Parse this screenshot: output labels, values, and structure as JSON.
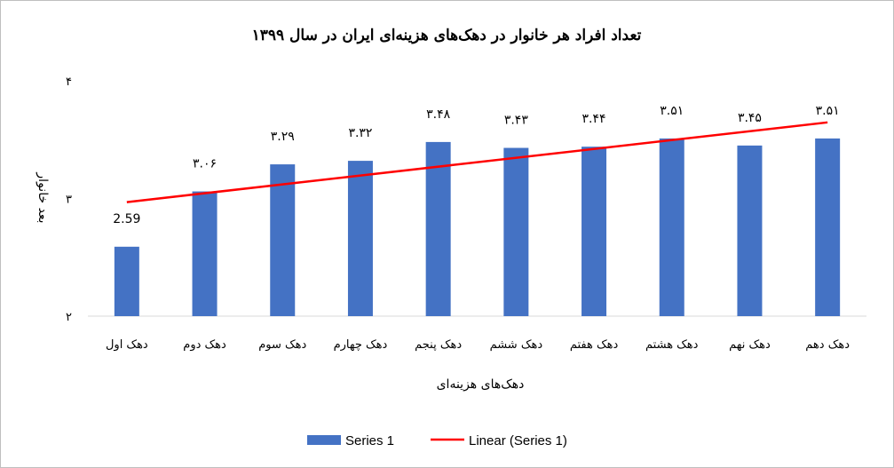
{
  "chart_data": {
    "type": "bar",
    "title": "تعداد افراد هر خانوار در دهک‌های هزینه‌ای ایران در سال ۱۳۹۹",
    "xlabel": "دهک‌های هزینه‌ای",
    "ylabel": "بعد خانوار",
    "ylim": [
      2,
      4
    ],
    "yticks": [
      2,
      3,
      4
    ],
    "ytick_labels": [
      "۲",
      "۳",
      "۴"
    ],
    "categories": [
      "دهک اول",
      "دهک دوم",
      "دهک سوم",
      "دهک چهارم",
      "دهک پنجم",
      "دهک ششم",
      "دهک هفتم",
      "دهک هشتم",
      "دهک نهم",
      "دهک دهم"
    ],
    "series": [
      {
        "name": "Series 1",
        "values": [
          2.59,
          3.06,
          3.29,
          3.32,
          3.48,
          3.43,
          3.44,
          3.51,
          3.45,
          3.51
        ],
        "data_labels": [
          "2.59",
          "۳.۰۶",
          "۳.۲۹",
          "۳.۳۲",
          "۳.۴۸",
          "۳.۴۳",
          "۳.۴۴",
          "۳.۵۱",
          "۳.۴۵",
          "۳.۵۱"
        ],
        "color": "#4472C4"
      }
    ],
    "trendline": {
      "name": "Linear (Series 1)",
      "kind": "linear",
      "color": "#FF0000"
    },
    "grid": {
      "horizontal": false,
      "vertical": false
    },
    "legend": "bottom"
  }
}
